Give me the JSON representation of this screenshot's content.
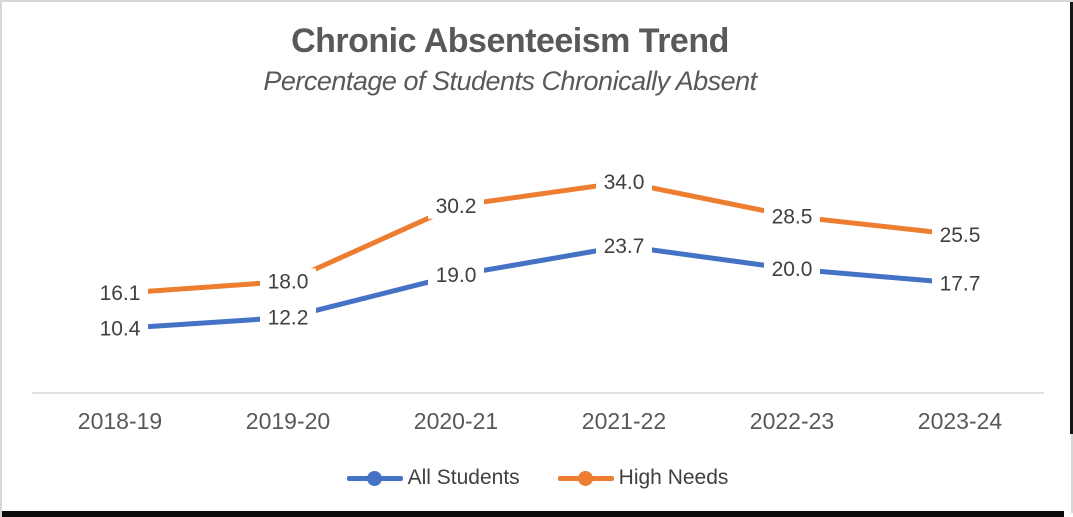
{
  "chart_data": {
    "type": "line",
    "title": "Chronic Absenteeism Trend",
    "subtitle": "Percentage of Students Chronically Absent",
    "categories": [
      "2018-19",
      "2019-20",
      "2020-21",
      "2021-22",
      "2022-23",
      "2023-24"
    ],
    "series": [
      {
        "name": "All Students",
        "color": "#4472C4",
        "values": [
          10.4,
          12.2,
          19.0,
          23.7,
          20.0,
          17.7
        ],
        "labels": [
          "10.4",
          "12.2",
          "19.0",
          "23.7",
          "20.0",
          "17.7"
        ]
      },
      {
        "name": "High Needs",
        "color": "#ED7D31",
        "values": [
          16.1,
          18.0,
          30.2,
          34.0,
          28.5,
          25.5
        ],
        "labels": [
          "16.1",
          "18.0",
          "30.2",
          "34.0",
          "28.5",
          "25.5"
        ]
      }
    ],
    "xlabel": "",
    "ylabel": "",
    "ylim": [
      0,
      40
    ],
    "grid": false,
    "data_labels": true,
    "legend_position": "bottom",
    "axis_color": "#d9d9d9",
    "label_color": "#404040",
    "tick_color": "#595959",
    "title_color": "#595959"
  }
}
